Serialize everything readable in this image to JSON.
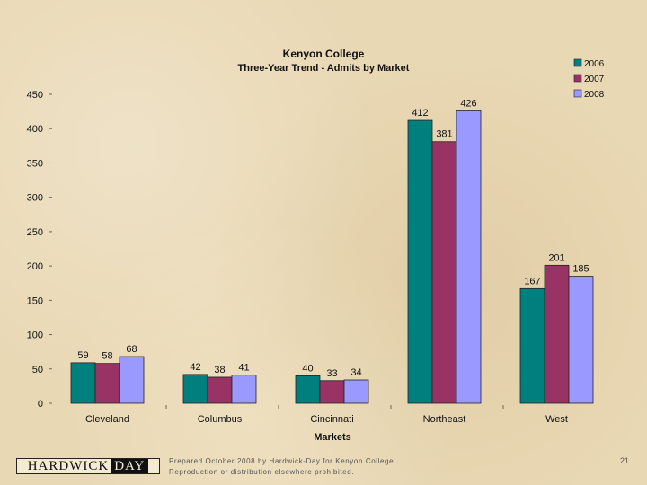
{
  "chart_data": {
    "type": "bar",
    "title": "Kenyon College",
    "subtitle": "Three-Year Trend - Admits by Market",
    "xlabel": "Markets",
    "ylabel": "",
    "ylim": [
      0,
      450
    ],
    "yticks": [
      "0",
      "50",
      "100",
      "150",
      "200",
      "250",
      "300",
      "350",
      "400",
      "450"
    ],
    "categories": [
      "Cleveland",
      "Columbus",
      "Cincinnati",
      "Northeast",
      "West"
    ],
    "series": [
      {
        "name": "2006",
        "color": "#007f7f",
        "values": [
          59,
          42,
          40,
          412,
          167
        ]
      },
      {
        "name": "2007",
        "color": "#993366",
        "values": [
          58,
          38,
          33,
          381,
          201
        ]
      },
      {
        "name": "2008",
        "color": "#9999ff",
        "values": [
          68,
          41,
          34,
          426,
          185
        ]
      }
    ],
    "legend_position": "top-right",
    "grid": false
  },
  "footer": {
    "logo_part_1": "HARDWICK",
    "logo_part_2": "DAY",
    "note_line_1": "Prepared October 2008 by Hardwick-Day for Kenyon College.",
    "note_line_2": "Reproduction or distribution elsewhere prohibited.",
    "page_number": "21"
  }
}
